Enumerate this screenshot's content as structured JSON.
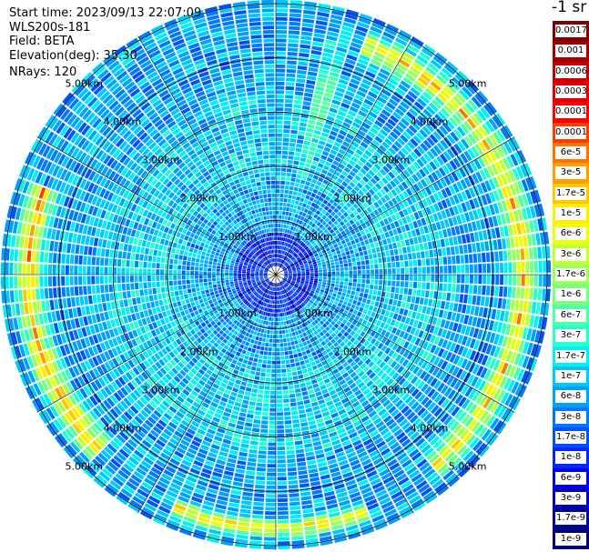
{
  "header": {
    "start_time": "Start time: 2023/09/13 22:07:09",
    "instrument": "WLS200s-181",
    "field": "Field: BETA",
    "elevation": "Elevation(deg): 35.30",
    "nrays": "NRays: 120"
  },
  "colorbar": {
    "unit": "-1 sr",
    "segments": [
      {
        "label": "0.0017",
        "color": "#7d0000"
      },
      {
        "label": "0.001",
        "color": "#a00000"
      },
      {
        "label": "0.0006",
        "color": "#c40000"
      },
      {
        "label": "0.0003",
        "color": "#e50000"
      },
      {
        "label": "0.00017",
        "color": "#ff0000"
      },
      {
        "label": "0.0001",
        "color": "#ff3b00"
      },
      {
        "label": "6e-5",
        "color": "#ff7300"
      },
      {
        "label": "3e-5",
        "color": "#ff9e00"
      },
      {
        "label": "1.7e-5",
        "color": "#ffc800"
      },
      {
        "label": "1e-5",
        "color": "#ffee00"
      },
      {
        "label": "6e-6",
        "color": "#eaff0c"
      },
      {
        "label": "3e-6",
        "color": "#c4ff33"
      },
      {
        "label": "1.7e-6",
        "color": "#9dff5a"
      },
      {
        "label": "1e-6",
        "color": "#76ff81"
      },
      {
        "label": "6e-7",
        "color": "#4fffa8"
      },
      {
        "label": "3e-7",
        "color": "#29ffcd"
      },
      {
        "label": "1.7e-7",
        "color": "#00f0f5"
      },
      {
        "label": "1e-7",
        "color": "#00c8ff"
      },
      {
        "label": "6e-8",
        "color": "#00a0ff"
      },
      {
        "label": "3e-8",
        "color": "#0078ff"
      },
      {
        "label": "1.7e-8",
        "color": "#0050ff"
      },
      {
        "label": "1e-8",
        "color": "#0028ff"
      },
      {
        "label": "6e-9",
        "color": "#0000f5"
      },
      {
        "label": "3e-9",
        "color": "#0000c8"
      },
      {
        "label": "1.7e-9",
        "color": "#00009b"
      },
      {
        "label": "1e-9",
        "color": "#00006e"
      }
    ]
  },
  "chart_data": {
    "type": "heatmap",
    "projection": "polar PPI",
    "n_rays": 120,
    "range_rings_km": [
      1,
      2,
      3,
      4,
      5
    ],
    "range_ring_labels": [
      "1.00km",
      "2.00km",
      "3.00km",
      "4.00km",
      "5.00km"
    ],
    "spoke_angles_deg": [
      0,
      30,
      60,
      90,
      120,
      150,
      180,
      210,
      240,
      270,
      300,
      330
    ],
    "max_range_km": 6.4,
    "dominant_level_by_range": [
      {
        "range_km": 0.5,
        "beta": "1e-8"
      },
      {
        "range_km": 1.5,
        "beta": "6e-8"
      },
      {
        "range_km": 3.0,
        "beta": "1e-7"
      },
      {
        "range_km": 5.5,
        "beta": "6e-8"
      }
    ],
    "features": [
      {
        "description": "enhanced band",
        "azimuth_deg_from": 20,
        "azimuth_deg_to": 140,
        "range_km_from": 5.3,
        "range_km_to": 6.2,
        "peak_beta": "3e-5"
      },
      {
        "description": "enhanced band",
        "azimuth_deg_from": 225,
        "azimuth_deg_to": 290,
        "range_km_from": 5.3,
        "range_km_to": 6.2,
        "peak_beta": "6e-5"
      },
      {
        "description": "enhanced band",
        "azimuth_deg_from": 160,
        "azimuth_deg_to": 205,
        "range_km_from": 5.6,
        "range_km_to": 6.2,
        "peak_beta": "3e-5"
      },
      {
        "description": "enhanced ray",
        "azimuth_deg_from": 12,
        "azimuth_deg_to": 18,
        "range_km_from": 2.0,
        "range_km_to": 6.4,
        "peak_beta": "1e-6"
      }
    ]
  }
}
